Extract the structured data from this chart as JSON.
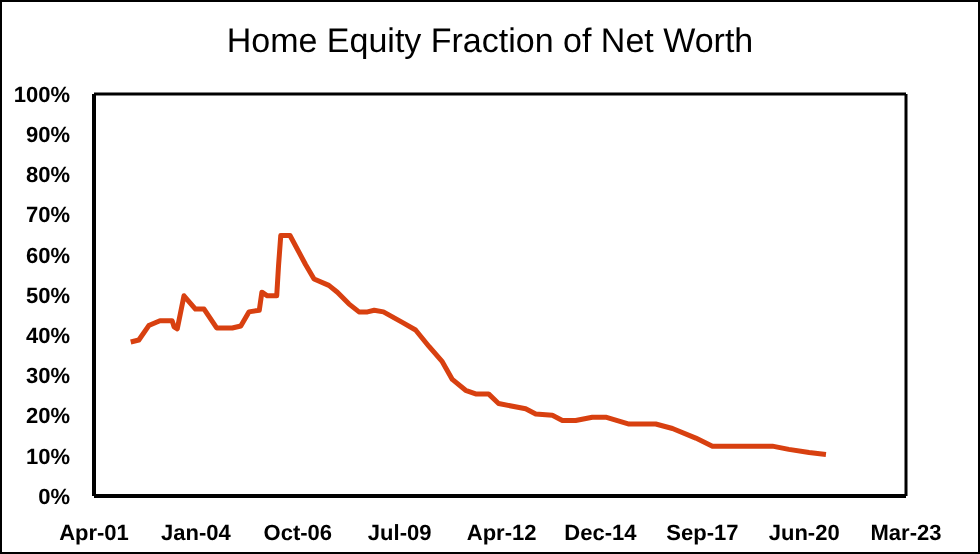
{
  "chart_data": {
    "type": "line",
    "title": "Home Equity Fraction of Net Worth",
    "x": [
      "2002-03-29",
      "2002-06-17",
      "2002-09-23",
      "2003-01-11",
      "2003-05-11",
      "2003-05-30",
      "2003-07-01",
      "2003-09-05",
      "2003-12-27",
      "2004-03-21",
      "2004-07-23",
      "2004-12-24",
      "2005-03-18",
      "2005-06-06",
      "2005-09-16",
      "2005-10-12",
      "2005-12-05",
      "2006-03-07",
      "2006-03-25",
      "2006-04-16",
      "2006-07-16",
      "2006-12-16",
      "2007-03-10",
      "2007-08-03",
      "2007-10-26",
      "2008-02-16",
      "2008-05-26",
      "2008-08-18",
      "2008-10-23",
      "2009-01-22",
      "2009-07-27",
      "2009-12-05",
      "2010-04-16",
      "2010-08-25",
      "2010-12-02",
      "2011-04-12",
      "2011-07-20",
      "2011-11-24",
      "2012-03-02",
      "2012-11-24",
      "2013-03-03",
      "2013-08-14",
      "2013-11-21",
      "2014-04-01",
      "2014-09-12",
      "2015-01-22",
      "2015-09-09",
      "2016-05-29",
      "2016-11-10",
      "2017-06-28",
      "2017-12-09",
      "2019-07-23",
      "2020-01-01",
      "2020-07-19",
      "2021-01-01"
    ],
    "series": [
      {
        "color": "#d84010",
        "values": [
          38.3,
          38.8,
          42.4,
          43.6,
          43.6,
          42.1,
          41.6,
          49.8,
          46.5,
          46.5,
          41.8,
          41.8,
          42.3,
          45.8,
          46.2,
          50.7,
          49.8,
          49.8,
          57.3,
          64.8,
          64.8,
          57.6,
          54.0,
          52.4,
          50.7,
          47.8,
          45.8,
          45.8,
          46.2,
          45.8,
          43.2,
          41.3,
          37.2,
          33.4,
          29.0,
          26.3,
          25.4,
          25.4,
          23.0,
          21.7,
          20.4,
          20.1,
          18.8,
          18.8,
          19.6,
          19.6,
          17.9,
          17.9,
          16.8,
          14.4,
          12.4,
          12.4,
          11.6,
          10.8,
          10.3
        ]
      }
    ],
    "xlim": [
      "2001-04-01",
      "2023-03-01"
    ],
    "xticks": [
      {
        "value": "2001-04-01",
        "label": "Apr-01"
      },
      {
        "value": "2004-01-01",
        "label": "Jan-04"
      },
      {
        "value": "2006-10-01",
        "label": "Oct-06"
      },
      {
        "value": "2009-07-01",
        "label": "Jul-09"
      },
      {
        "value": "2012-04-01",
        "label": "Apr-12"
      },
      {
        "value": "2014-12-01",
        "label": "Dec-14"
      },
      {
        "value": "2017-09-01",
        "label": "Sep-17"
      },
      {
        "value": "2020-06-01",
        "label": "Jun-20"
      },
      {
        "value": "2023-03-01",
        "label": "Mar-23"
      }
    ],
    "ylim": [
      0,
      100
    ],
    "yticks": [
      {
        "value": 0,
        "label": "0%"
      },
      {
        "value": 10,
        "label": "10%"
      },
      {
        "value": 20,
        "label": "20%"
      },
      {
        "value": 30,
        "label": "30%"
      },
      {
        "value": 40,
        "label": "40%"
      },
      {
        "value": 50,
        "label": "50%"
      },
      {
        "value": 60,
        "label": "60%"
      },
      {
        "value": 70,
        "label": "70%"
      },
      {
        "value": 80,
        "label": "80%"
      },
      {
        "value": 90,
        "label": "90%"
      },
      {
        "value": 100,
        "label": "100%"
      }
    ],
    "grid": false,
    "legend": false,
    "marker": "none",
    "line_style": "solid"
  }
}
